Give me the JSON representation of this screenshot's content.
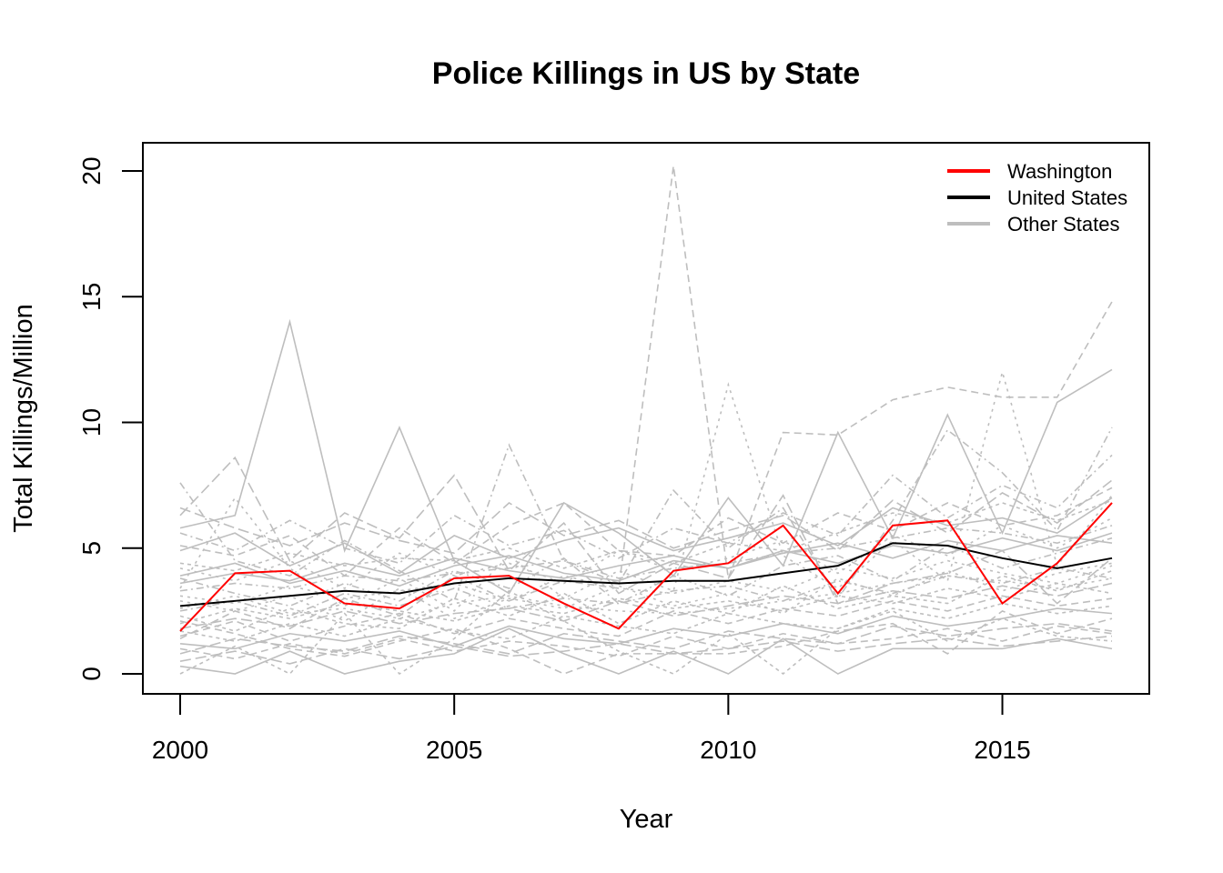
{
  "chart_data": {
    "type": "line",
    "title": "Police Killings in US by State",
    "xlabel": "Year",
    "ylabel": "Total Killings/Million",
    "xlim": [
      2000,
      2017
    ],
    "ylim": [
      0,
      20
    ],
    "x_ticks": [
      "2000",
      "2005",
      "2010",
      "2015"
    ],
    "y_ticks": [
      "0",
      "5",
      "10",
      "15",
      "20"
    ],
    "legend_position": "top-right",
    "legend": [
      {
        "label": "Washington",
        "color": "#ff0000"
      },
      {
        "label": "United States",
        "color": "#000000"
      },
      {
        "label": "Other States",
        "color": "#bebebe"
      }
    ],
    "x": [
      2000,
      2001,
      2002,
      2003,
      2004,
      2005,
      2006,
      2007,
      2008,
      2009,
      2010,
      2011,
      2012,
      2013,
      2014,
      2015,
      2016,
      2017
    ],
    "series": [
      {
        "name": "Washington",
        "color": "#ff0000",
        "values": [
          1.7,
          4.0,
          4.1,
          2.8,
          2.6,
          3.8,
          3.9,
          2.8,
          1.8,
          4.1,
          4.4,
          5.9,
          3.2,
          5.9,
          6.1,
          2.8,
          4.4,
          6.8
        ]
      },
      {
        "name": "United States",
        "color": "#000000",
        "values": [
          2.7,
          2.9,
          3.1,
          3.3,
          3.2,
          3.6,
          3.8,
          3.7,
          3.6,
          3.7,
          3.7,
          4.0,
          4.3,
          5.2,
          5.1,
          4.6,
          4.2,
          4.6
        ]
      },
      {
        "name": "Other States",
        "color": "#bebebe",
        "values": [
          5.8,
          6.3,
          14.0,
          4.9,
          9.8,
          4.5,
          3.2,
          6.8,
          5.6,
          3.9,
          7.0,
          4.3,
          9.6,
          5.4,
          10.3,
          5.6,
          10.8,
          12.1
        ]
      },
      {
        "color": "#bebebe",
        "values": [
          1.4,
          2.5,
          1.8,
          3.0,
          2.3,
          3.9,
          2.9,
          3.7,
          3.4,
          20.2,
          3.8,
          9.6,
          9.5,
          10.9,
          11.4,
          11.0,
          11.0,
          14.8
        ]
      },
      {
        "color": "#bebebe",
        "values": [
          3.4,
          7.0,
          4.2,
          2.7,
          3.8,
          2.5,
          4.7,
          3.0,
          4.1,
          3.3,
          11.5,
          4.7,
          3.4,
          5.3,
          3.7,
          12.0,
          4.3,
          7.1
        ]
      },
      {
        "color": "#bebebe",
        "values": [
          7.6,
          4.5,
          3.9,
          5.3,
          4.1,
          2.9,
          9.1,
          4.5,
          3.6,
          7.3,
          5.0,
          6.6,
          3.0,
          6.1,
          9.7,
          8.0,
          5.7,
          9.8
        ]
      },
      {
        "color": "#bebebe",
        "values": [
          6.3,
          8.6,
          4.5,
          6.4,
          5.4,
          7.9,
          4.1,
          6.0,
          3.2,
          4.4,
          3.8,
          7.1,
          2.8,
          3.6,
          4.0,
          4.9,
          2.8,
          4.6
        ]
      },
      {
        "color": "#bebebe",
        "values": [
          0.0,
          1.1,
          0.0,
          2.4,
          0.0,
          1.4,
          3.3,
          2.1,
          0.9,
          0.0,
          1.6,
          0.0,
          1.8,
          2.5,
          1.3,
          2.2,
          1.5,
          1.3
        ]
      },
      {
        "color": "#bebebe",
        "values": [
          0.3,
          0.0,
          0.9,
          0.0,
          0.5,
          0.8,
          1.8,
          0.8,
          0.0,
          0.9,
          0.0,
          1.4,
          0.0,
          1.0,
          1.0,
          1.0,
          1.4,
          1.0
        ]
      },
      {
        "color": "#bebebe",
        "values": [
          2.1,
          1.6,
          1.0,
          0.7,
          1.3,
          1.8,
          1.0,
          0.0,
          0.8,
          0.8,
          0.8,
          1.1,
          1.7,
          2.0,
          0.8,
          2.5,
          1.6,
          2.2
        ]
      },
      {
        "color": "#bebebe",
        "values": [
          2.6,
          3.1,
          2.4,
          2.6,
          2.2,
          2.8,
          3.1,
          2.7,
          2.5,
          2.4,
          2.6,
          2.9,
          3.2,
          3.6,
          3.9,
          3.7,
          3.4,
          3.8
        ]
      },
      {
        "color": "#bebebe",
        "values": [
          3.3,
          3.6,
          3.4,
          3.9,
          3.7,
          4.0,
          4.2,
          4.5,
          3.8,
          4.2,
          4.4,
          4.8,
          5.0,
          5.4,
          5.8,
          5.6,
          5.2,
          5.9
        ]
      },
      {
        "color": "#bebebe",
        "values": [
          1.8,
          2.2,
          1.9,
          2.5,
          2.0,
          2.4,
          2.6,
          2.1,
          2.9,
          2.3,
          2.7,
          3.1,
          2.8,
          3.3,
          3.0,
          3.5,
          3.1,
          3.6
        ]
      },
      {
        "color": "#bebebe",
        "values": [
          4.4,
          4.1,
          4.8,
          4.3,
          4.6,
          4.5,
          5.0,
          4.2,
          4.9,
          4.4,
          5.2,
          4.9,
          5.6,
          6.4,
          6.0,
          6.8,
          6.1,
          6.9
        ]
      },
      {
        "color": "#bebebe",
        "values": [
          1.2,
          1.0,
          1.6,
          1.3,
          1.7,
          1.1,
          1.9,
          1.4,
          1.2,
          1.8,
          1.5,
          2.0,
          1.6,
          2.3,
          1.9,
          2.2,
          2.6,
          2.4
        ]
      },
      {
        "color": "#bebebe",
        "values": [
          5.1,
          4.7,
          5.5,
          3.9,
          5.8,
          4.4,
          5.9,
          6.8,
          4.9,
          4.7,
          6.2,
          5.2,
          6.4,
          5.7,
          6.8,
          5.9,
          6.3,
          7.4
        ]
      },
      {
        "color": "#bebebe",
        "values": [
          2.9,
          2.5,
          3.1,
          2.1,
          3.4,
          2.2,
          3.0,
          2.6,
          3.5,
          2.7,
          3.2,
          2.4,
          3.8,
          3.1,
          4.1,
          3.3,
          4.0,
          4.4
        ]
      },
      {
        "color": "#bebebe",
        "values": [
          3.8,
          3.2,
          2.7,
          3.6,
          2.9,
          4.1,
          3.4,
          4.6,
          2.8,
          3.9,
          3.1,
          4.3,
          4.7,
          3.7,
          5.1,
          4.2,
          4.8,
          5.4
        ]
      },
      {
        "color": "#bebebe",
        "values": [
          0.8,
          1.4,
          1.1,
          0.9,
          1.5,
          1.2,
          0.8,
          1.6,
          1.3,
          1.0,
          1.7,
          1.4,
          1.2,
          1.9,
          1.5,
          1.8,
          2.0,
          1.7
        ]
      },
      {
        "color": "#bebebe",
        "values": [
          2.3,
          1.7,
          2.6,
          2.0,
          1.8,
          3.0,
          2.3,
          3.2,
          2.0,
          2.9,
          2.4,
          3.5,
          2.6,
          3.1,
          2.8,
          3.9,
          3.3,
          4.1
        ]
      },
      {
        "color": "#bebebe",
        "values": [
          4.9,
          5.6,
          4.3,
          5.2,
          4.0,
          5.5,
          4.6,
          5.3,
          5.8,
          4.9,
          5.4,
          6.0,
          5.1,
          6.6,
          5.9,
          6.2,
          5.6,
          7.0
        ]
      },
      {
        "color": "#bebebe",
        "values": [
          1.5,
          2.1,
          1.3,
          1.9,
          2.4,
          1.6,
          2.2,
          1.8,
          1.5,
          2.5,
          2.0,
          2.6,
          2.3,
          2.9,
          2.5,
          3.1,
          2.7,
          3.0
        ]
      },
      {
        "color": "#bebebe",
        "values": [
          3.1,
          2.8,
          3.5,
          3.0,
          3.3,
          3.6,
          2.9,
          3.9,
          3.4,
          3.2,
          3.7,
          3.3,
          4.2,
          3.8,
          4.5,
          4.0,
          3.6,
          4.3
        ]
      },
      {
        "color": "#bebebe",
        "values": [
          5.6,
          4.9,
          6.1,
          5.0,
          4.4,
          6.3,
          5.1,
          5.7,
          4.6,
          5.8,
          5.2,
          6.4,
          5.5,
          7.9,
          6.2,
          7.5,
          6.6,
          8.7
        ]
      },
      {
        "color": "#bebebe",
        "values": [
          0.5,
          0.9,
          0.4,
          1.0,
          0.6,
          1.1,
          0.7,
          0.9,
          1.2,
          0.8,
          1.0,
          1.3,
          0.9,
          1.2,
          1.4,
          1.1,
          1.3,
          1.5
        ]
      },
      {
        "color": "#bebebe",
        "values": [
          2.0,
          2.6,
          2.2,
          2.8,
          2.5,
          2.1,
          2.7,
          2.4,
          3.0,
          2.6,
          2.9,
          2.5,
          3.1,
          2.8,
          3.4,
          3.0,
          3.6,
          3.2
        ]
      },
      {
        "color": "#bebebe",
        "values": [
          3.6,
          4.0,
          3.7,
          4.4,
          3.9,
          4.6,
          4.1,
          3.8,
          4.3,
          4.7,
          4.2,
          4.9,
          4.4,
          5.1,
          4.8,
          5.4,
          4.9,
          5.6
        ]
      },
      {
        "color": "#bebebe",
        "values": [
          1.0,
          0.6,
          1.2,
          0.8,
          1.4,
          0.9,
          1.3,
          1.1,
          0.7,
          1.5,
          1.0,
          1.6,
          1.2,
          1.4,
          1.8,
          1.3,
          1.9,
          1.6
        ]
      },
      {
        "color": "#bebebe",
        "values": [
          4.2,
          3.7,
          4.5,
          3.4,
          4.8,
          3.9,
          4.4,
          3.6,
          4.9,
          4.1,
          4.6,
          5.3,
          4.0,
          5.5,
          4.7,
          5.9,
          5.0,
          6.2
        ]
      },
      {
        "color": "#bebebe",
        "values": [
          2.5,
          2.9,
          2.3,
          3.2,
          2.7,
          3.4,
          2.6,
          3.0,
          2.8,
          3.3,
          3.5,
          2.9,
          3.7,
          3.2,
          3.9,
          3.6,
          4.2,
          3.8
        ]
      },
      {
        "color": "#bebebe",
        "values": [
          6.6,
          5.8,
          5.1,
          6.0,
          5.3,
          4.8,
          6.8,
          5.5,
          6.1,
          5.0,
          5.7,
          6.3,
          4.9,
          6.9,
          5.6,
          7.2,
          6.0,
          7.7
        ]
      },
      {
        "color": "#bebebe",
        "values": [
          1.7,
          1.3,
          2.0,
          1.5,
          2.2,
          1.7,
          1.4,
          2.3,
          1.9,
          1.6,
          2.4,
          2.0,
          1.8,
          2.6,
          2.2,
          2.8,
          2.4,
          2.7
        ]
      },
      {
        "color": "#bebebe",
        "values": [
          3.9,
          4.4,
          3.6,
          4.1,
          3.5,
          4.3,
          4.7,
          4.0,
          3.7,
          4.5,
          4.2,
          4.8,
          5.2,
          4.6,
          5.3,
          4.9,
          5.5,
          5.2
        ]
      }
    ]
  }
}
